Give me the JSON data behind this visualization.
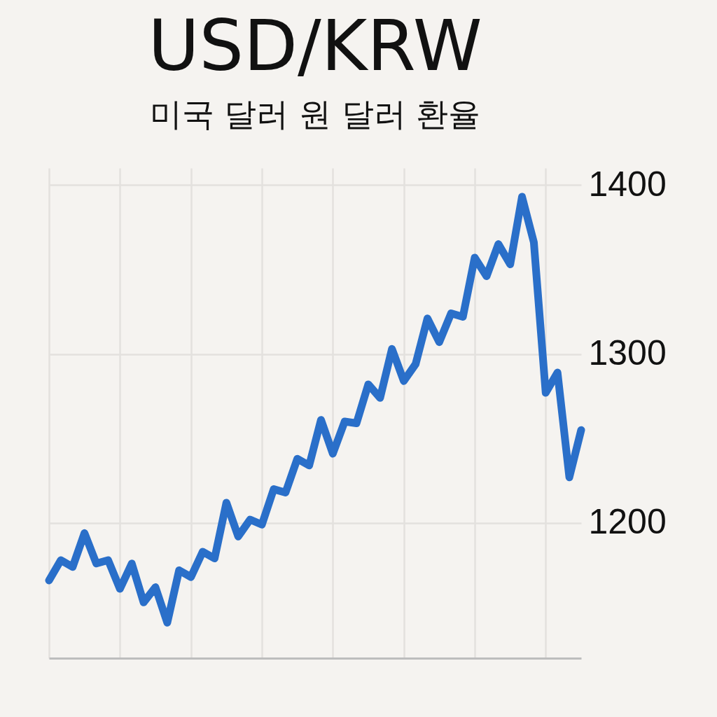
{
  "chart_data": {
    "type": "line",
    "title": "USD/KRW",
    "subtitle": "미국 달러 원 달러 환율",
    "categories": [
      null,
      null,
      null,
      null,
      null,
      null,
      null,
      null,
      null,
      null,
      null,
      null,
      null,
      null,
      null,
      null,
      null,
      null,
      null,
      null,
      null,
      null,
      null,
      null,
      null,
      null,
      null,
      null,
      null,
      null,
      null,
      null,
      null,
      null,
      null,
      null,
      null,
      null,
      null,
      null,
      null,
      null,
      null,
      null,
      null,
      null
    ],
    "series": [
      {
        "color": "#2a6fc9",
        "values": [
          1166,
          1178,
          1174,
          1194,
          1176,
          1178,
          1161,
          1176,
          1153,
          1162,
          1141,
          1172,
          1168,
          1183,
          1179,
          1212,
          1192,
          1202,
          1199,
          1220,
          1218,
          1238,
          1234,
          1261,
          1241,
          1260,
          1259,
          1282,
          1274,
          1303,
          1284,
          1294,
          1321,
          1307,
          1324,
          1322,
          1357,
          1346,
          1365,
          1353,
          1393,
          1366,
          1277,
          1289,
          1227,
          1255
        ]
      }
    ],
    "ylim": [
      1120,
      1410
    ],
    "yticks": [
      1200,
      1300,
      1400
    ],
    "grid": true,
    "tick_labels": "y",
    "line_style": "solid",
    "marker": "none"
  }
}
